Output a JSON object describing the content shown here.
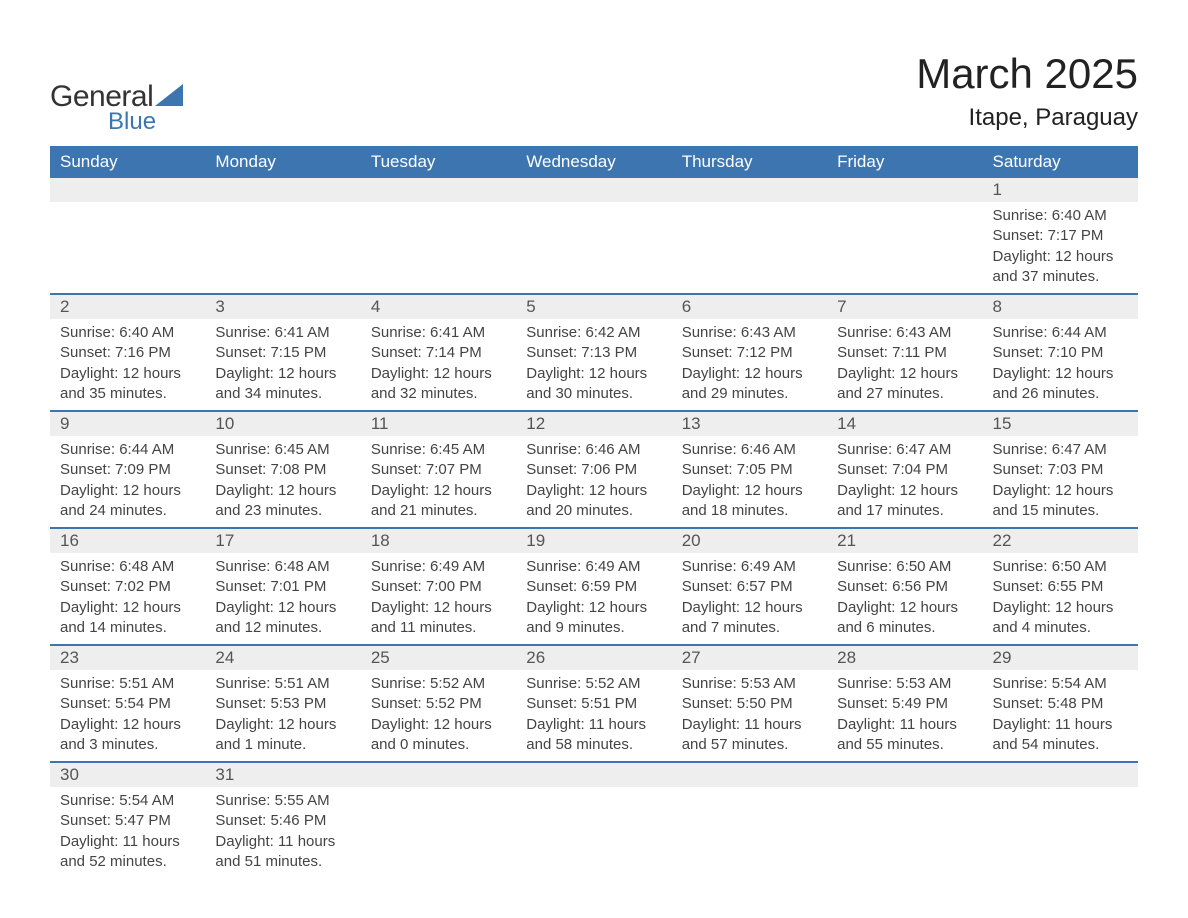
{
  "logo": {
    "text_general": "General",
    "text_blue": "Blue",
    "logo_color": "#3d75b0"
  },
  "header": {
    "month_title": "March 2025",
    "location": "Itape, Paraguay"
  },
  "colors": {
    "header_bg": "#3d75b0",
    "header_text": "#ffffff",
    "daynum_bg": "#eeeeee",
    "row_border": "#3d75b0",
    "body_text": "#444444"
  },
  "weekdays": [
    "Sunday",
    "Monday",
    "Tuesday",
    "Wednesday",
    "Thursday",
    "Friday",
    "Saturday"
  ],
  "weeks": [
    [
      null,
      null,
      null,
      null,
      null,
      null,
      {
        "day": "1",
        "sunrise": "Sunrise: 6:40 AM",
        "sunset": "Sunset: 7:17 PM",
        "daylight1": "Daylight: 12 hours",
        "daylight2": "and 37 minutes."
      }
    ],
    [
      {
        "day": "2",
        "sunrise": "Sunrise: 6:40 AM",
        "sunset": "Sunset: 7:16 PM",
        "daylight1": "Daylight: 12 hours",
        "daylight2": "and 35 minutes."
      },
      {
        "day": "3",
        "sunrise": "Sunrise: 6:41 AM",
        "sunset": "Sunset: 7:15 PM",
        "daylight1": "Daylight: 12 hours",
        "daylight2": "and 34 minutes."
      },
      {
        "day": "4",
        "sunrise": "Sunrise: 6:41 AM",
        "sunset": "Sunset: 7:14 PM",
        "daylight1": "Daylight: 12 hours",
        "daylight2": "and 32 minutes."
      },
      {
        "day": "5",
        "sunrise": "Sunrise: 6:42 AM",
        "sunset": "Sunset: 7:13 PM",
        "daylight1": "Daylight: 12 hours",
        "daylight2": "and 30 minutes."
      },
      {
        "day": "6",
        "sunrise": "Sunrise: 6:43 AM",
        "sunset": "Sunset: 7:12 PM",
        "daylight1": "Daylight: 12 hours",
        "daylight2": "and 29 minutes."
      },
      {
        "day": "7",
        "sunrise": "Sunrise: 6:43 AM",
        "sunset": "Sunset: 7:11 PM",
        "daylight1": "Daylight: 12 hours",
        "daylight2": "and 27 minutes."
      },
      {
        "day": "8",
        "sunrise": "Sunrise: 6:44 AM",
        "sunset": "Sunset: 7:10 PM",
        "daylight1": "Daylight: 12 hours",
        "daylight2": "and 26 minutes."
      }
    ],
    [
      {
        "day": "9",
        "sunrise": "Sunrise: 6:44 AM",
        "sunset": "Sunset: 7:09 PM",
        "daylight1": "Daylight: 12 hours",
        "daylight2": "and 24 minutes."
      },
      {
        "day": "10",
        "sunrise": "Sunrise: 6:45 AM",
        "sunset": "Sunset: 7:08 PM",
        "daylight1": "Daylight: 12 hours",
        "daylight2": "and 23 minutes."
      },
      {
        "day": "11",
        "sunrise": "Sunrise: 6:45 AM",
        "sunset": "Sunset: 7:07 PM",
        "daylight1": "Daylight: 12 hours",
        "daylight2": "and 21 minutes."
      },
      {
        "day": "12",
        "sunrise": "Sunrise: 6:46 AM",
        "sunset": "Sunset: 7:06 PM",
        "daylight1": "Daylight: 12 hours",
        "daylight2": "and 20 minutes."
      },
      {
        "day": "13",
        "sunrise": "Sunrise: 6:46 AM",
        "sunset": "Sunset: 7:05 PM",
        "daylight1": "Daylight: 12 hours",
        "daylight2": "and 18 minutes."
      },
      {
        "day": "14",
        "sunrise": "Sunrise: 6:47 AM",
        "sunset": "Sunset: 7:04 PM",
        "daylight1": "Daylight: 12 hours",
        "daylight2": "and 17 minutes."
      },
      {
        "day": "15",
        "sunrise": "Sunrise: 6:47 AM",
        "sunset": "Sunset: 7:03 PM",
        "daylight1": "Daylight: 12 hours",
        "daylight2": "and 15 minutes."
      }
    ],
    [
      {
        "day": "16",
        "sunrise": "Sunrise: 6:48 AM",
        "sunset": "Sunset: 7:02 PM",
        "daylight1": "Daylight: 12 hours",
        "daylight2": "and 14 minutes."
      },
      {
        "day": "17",
        "sunrise": "Sunrise: 6:48 AM",
        "sunset": "Sunset: 7:01 PM",
        "daylight1": "Daylight: 12 hours",
        "daylight2": "and 12 minutes."
      },
      {
        "day": "18",
        "sunrise": "Sunrise: 6:49 AM",
        "sunset": "Sunset: 7:00 PM",
        "daylight1": "Daylight: 12 hours",
        "daylight2": "and 11 minutes."
      },
      {
        "day": "19",
        "sunrise": "Sunrise: 6:49 AM",
        "sunset": "Sunset: 6:59 PM",
        "daylight1": "Daylight: 12 hours",
        "daylight2": "and 9 minutes."
      },
      {
        "day": "20",
        "sunrise": "Sunrise: 6:49 AM",
        "sunset": "Sunset: 6:57 PM",
        "daylight1": "Daylight: 12 hours",
        "daylight2": "and 7 minutes."
      },
      {
        "day": "21",
        "sunrise": "Sunrise: 6:50 AM",
        "sunset": "Sunset: 6:56 PM",
        "daylight1": "Daylight: 12 hours",
        "daylight2": "and 6 minutes."
      },
      {
        "day": "22",
        "sunrise": "Sunrise: 6:50 AM",
        "sunset": "Sunset: 6:55 PM",
        "daylight1": "Daylight: 12 hours",
        "daylight2": "and 4 minutes."
      }
    ],
    [
      {
        "day": "23",
        "sunrise": "Sunrise: 5:51 AM",
        "sunset": "Sunset: 5:54 PM",
        "daylight1": "Daylight: 12 hours",
        "daylight2": "and 3 minutes."
      },
      {
        "day": "24",
        "sunrise": "Sunrise: 5:51 AM",
        "sunset": "Sunset: 5:53 PM",
        "daylight1": "Daylight: 12 hours",
        "daylight2": "and 1 minute."
      },
      {
        "day": "25",
        "sunrise": "Sunrise: 5:52 AM",
        "sunset": "Sunset: 5:52 PM",
        "daylight1": "Daylight: 12 hours",
        "daylight2": "and 0 minutes."
      },
      {
        "day": "26",
        "sunrise": "Sunrise: 5:52 AM",
        "sunset": "Sunset: 5:51 PM",
        "daylight1": "Daylight: 11 hours",
        "daylight2": "and 58 minutes."
      },
      {
        "day": "27",
        "sunrise": "Sunrise: 5:53 AM",
        "sunset": "Sunset: 5:50 PM",
        "daylight1": "Daylight: 11 hours",
        "daylight2": "and 57 minutes."
      },
      {
        "day": "28",
        "sunrise": "Sunrise: 5:53 AM",
        "sunset": "Sunset: 5:49 PM",
        "daylight1": "Daylight: 11 hours",
        "daylight2": "and 55 minutes."
      },
      {
        "day": "29",
        "sunrise": "Sunrise: 5:54 AM",
        "sunset": "Sunset: 5:48 PM",
        "daylight1": "Daylight: 11 hours",
        "daylight2": "and 54 minutes."
      }
    ],
    [
      {
        "day": "30",
        "sunrise": "Sunrise: 5:54 AM",
        "sunset": "Sunset: 5:47 PM",
        "daylight1": "Daylight: 11 hours",
        "daylight2": "and 52 minutes."
      },
      {
        "day": "31",
        "sunrise": "Sunrise: 5:55 AM",
        "sunset": "Sunset: 5:46 PM",
        "daylight1": "Daylight: 11 hours",
        "daylight2": "and 51 minutes."
      },
      null,
      null,
      null,
      null,
      null
    ]
  ]
}
